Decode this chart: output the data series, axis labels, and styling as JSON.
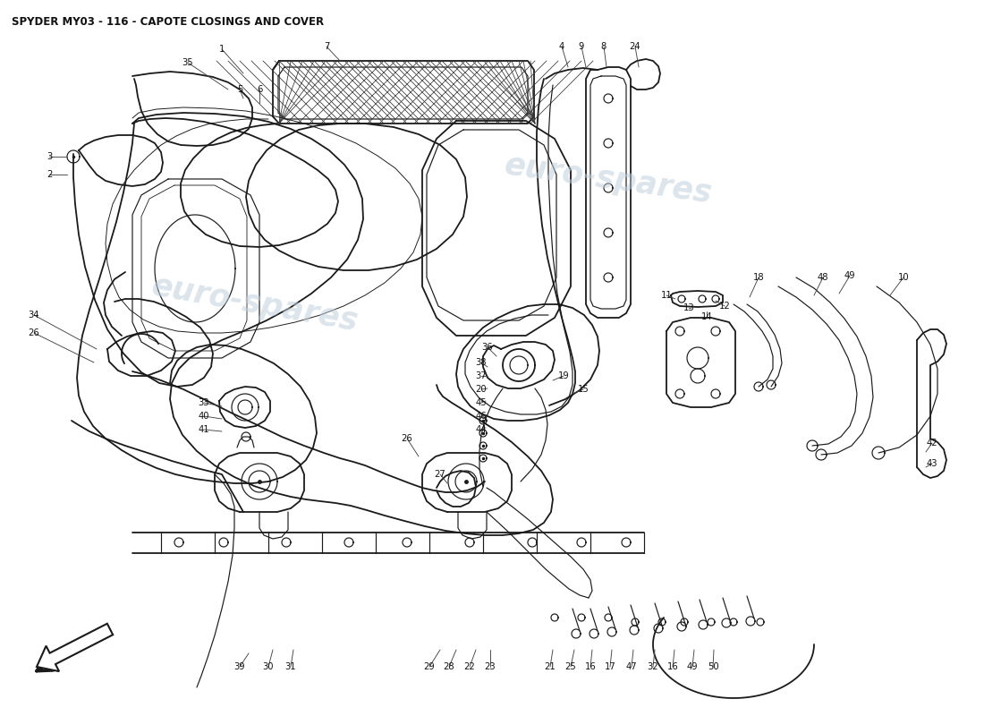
{
  "title": "SPYDER MY03 - 116 - CAPOTE CLOSINGS AND COVER",
  "title_fontsize": 8.5,
  "title_fontweight": "bold",
  "bg": "#ffffff",
  "line_color": "#1a1a1a",
  "wm_color": "#c0d0dc",
  "wm_alpha": 0.55,
  "lw_main": 1.3,
  "lw_thin": 0.85,
  "label_fs": 7.2,
  "fig_w": 11.0,
  "fig_h": 8.0,
  "dpi": 100
}
